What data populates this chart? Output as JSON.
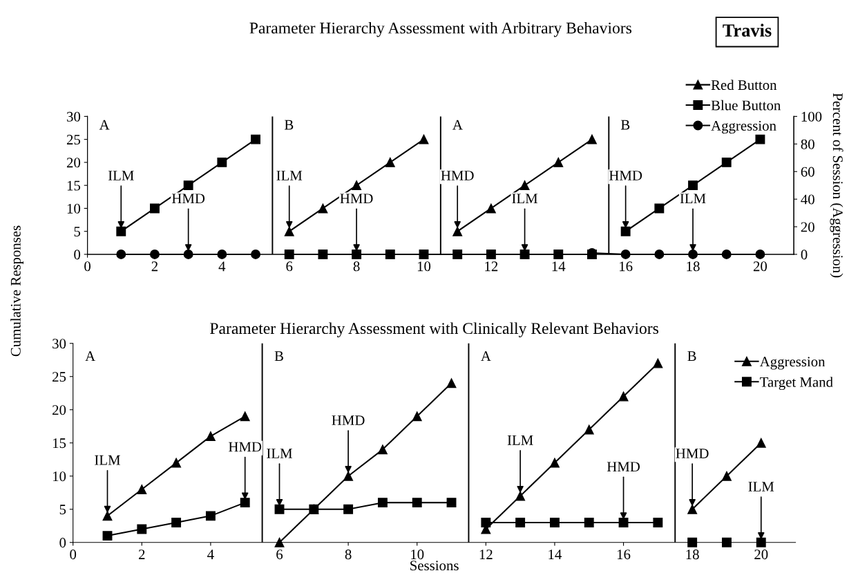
{
  "chart_data": [
    {
      "type": "line",
      "title": "Parameter Hierarchy Assessment with Arbitrary Behaviors",
      "ylabel": "Cumulative Responses",
      "y2label": "Percent of Session (Aggression)",
      "xlim": [
        0,
        21
      ],
      "xticks": [
        0,
        2,
        4,
        6,
        8,
        10,
        12,
        14,
        16,
        18,
        20
      ],
      "ylim": [
        0,
        30
      ],
      "yticks": [
        0,
        5,
        10,
        15,
        20,
        25,
        30
      ],
      "y2lim": [
        0,
        100
      ],
      "y2ticks": [
        0,
        20,
        40,
        60,
        80,
        100
      ],
      "legend": "top right",
      "grid": false,
      "series": [
        {
          "name": "Red Button",
          "color": "#000000",
          "marker": "triangle",
          "x": [
            6,
            7,
            8,
            9,
            10,
            10.5,
            11,
            12,
            13,
            14,
            15
          ],
          "values": [
            5,
            10,
            15,
            20,
            25,
            null,
            5,
            10,
            15,
            20,
            25
          ]
        },
        {
          "name": "Blue Button",
          "color": "#000000",
          "marker": "square",
          "x": [
            1,
            2,
            3,
            4,
            5,
            5.5,
            6,
            7,
            8,
            9,
            10,
            11,
            12,
            13,
            14,
            15,
            15.5,
            16,
            17,
            18,
            19,
            20
          ],
          "values": [
            5,
            10,
            15,
            20,
            25,
            null,
            0,
            0,
            0,
            0,
            0,
            0,
            0,
            0,
            0,
            0,
            null,
            5,
            10,
            15,
            20,
            25
          ]
        },
        {
          "name": "Aggression",
          "color": "#000000",
          "marker": "circle",
          "axis": "y2",
          "x": [
            1,
            2,
            3,
            4,
            5,
            5.5,
            15,
            16,
            17,
            18,
            19,
            20
          ],
          "values": [
            0,
            0,
            0,
            0,
            0,
            null,
            1,
            0,
            0,
            0,
            0,
            0
          ]
        }
      ],
      "ref_lines": [
        {
          "axis": "x",
          "value": 5.5,
          "color": "#000000"
        },
        {
          "axis": "x",
          "value": 10.5,
          "color": "#000000"
        },
        {
          "axis": "x",
          "value": 15.5,
          "color": "#000000"
        }
      ],
      "annotations": [
        "Travis",
        "A",
        "B",
        "A",
        "B",
        {
          "text": "ILM",
          "x": 1,
          "y": 5
        },
        {
          "text": "HMD",
          "x": 3,
          "y": 0
        },
        {
          "text": "ILM",
          "x": 6,
          "y": 5
        },
        {
          "text": "HMD",
          "x": 8,
          "y": 0
        },
        {
          "text": "HMD",
          "x": 11,
          "y": 5
        },
        {
          "text": "ILM",
          "x": 13,
          "y": 0
        },
        {
          "text": "HMD",
          "x": 16,
          "y": 5
        },
        {
          "text": "ILM",
          "x": 18,
          "y": 0
        }
      ]
    },
    {
      "type": "line",
      "title": "Parameter Hierarchy Assessment with Clinically Relevant Behaviors",
      "xlabel": "Sessions",
      "xlim": [
        0,
        21
      ],
      "xticks": [
        0,
        2,
        4,
        6,
        8,
        10,
        12,
        14,
        16,
        18,
        20
      ],
      "ylim": [
        0,
        30
      ],
      "yticks": [
        0,
        5,
        10,
        15,
        20,
        25,
        30
      ],
      "legend": "top right",
      "grid": false,
      "series": [
        {
          "name": "Aggression",
          "color": "#000000",
          "marker": "triangle",
          "x": [
            1,
            2,
            3,
            4,
            5,
            5.5,
            6,
            7,
            8,
            9,
            10,
            11,
            11.5,
            12,
            13,
            14,
            15,
            16,
            17,
            17.5,
            18,
            19,
            20
          ],
          "values": [
            4,
            8,
            12,
            16,
            19,
            null,
            0,
            5,
            10,
            14,
            19,
            24,
            null,
            2,
            7,
            12,
            17,
            22,
            27,
            null,
            5,
            10,
            15
          ]
        },
        {
          "name": "Target Mand",
          "color": "#000000",
          "marker": "square",
          "x": [
            1,
            2,
            3,
            4,
            5,
            5.5,
            6,
            7,
            8,
            9,
            10,
            11,
            11.5,
            12,
            13,
            14,
            15,
            16,
            17
          ],
          "values": [
            1,
            2,
            3,
            4,
            6,
            null,
            5,
            5,
            5,
            6,
            6,
            6,
            null,
            3,
            3,
            3,
            3,
            3,
            3
          ]
        },
        {
          "type": "scatter",
          "color": "#000000",
          "marker": "square",
          "x": [
            18,
            19,
            20
          ],
          "values": [
            0,
            0,
            0
          ]
        }
      ],
      "ref_lines": [
        {
          "axis": "x",
          "value": 5.5,
          "color": "#000000"
        },
        {
          "axis": "x",
          "value": 11.5,
          "color": "#000000"
        },
        {
          "axis": "x",
          "value": 17.5,
          "color": "#000000"
        }
      ],
      "annotations": [
        "A",
        "B",
        "A",
        "B",
        {
          "text": "ILM",
          "x": 1,
          "y": 4
        },
        {
          "text": "HMD",
          "x": 5,
          "y": 6
        },
        {
          "text": "ILM",
          "x": 6,
          "y": 5
        },
        {
          "text": "HMD",
          "x": 8,
          "y": 10
        },
        {
          "text": "ILM",
          "x": 13,
          "y": 7
        },
        {
          "text": "HMD",
          "x": 16,
          "y": 3
        },
        {
          "text": "HMD",
          "x": 18,
          "y": 5
        },
        {
          "text": "ILM",
          "x": 20,
          "y": 0
        }
      ]
    }
  ]
}
